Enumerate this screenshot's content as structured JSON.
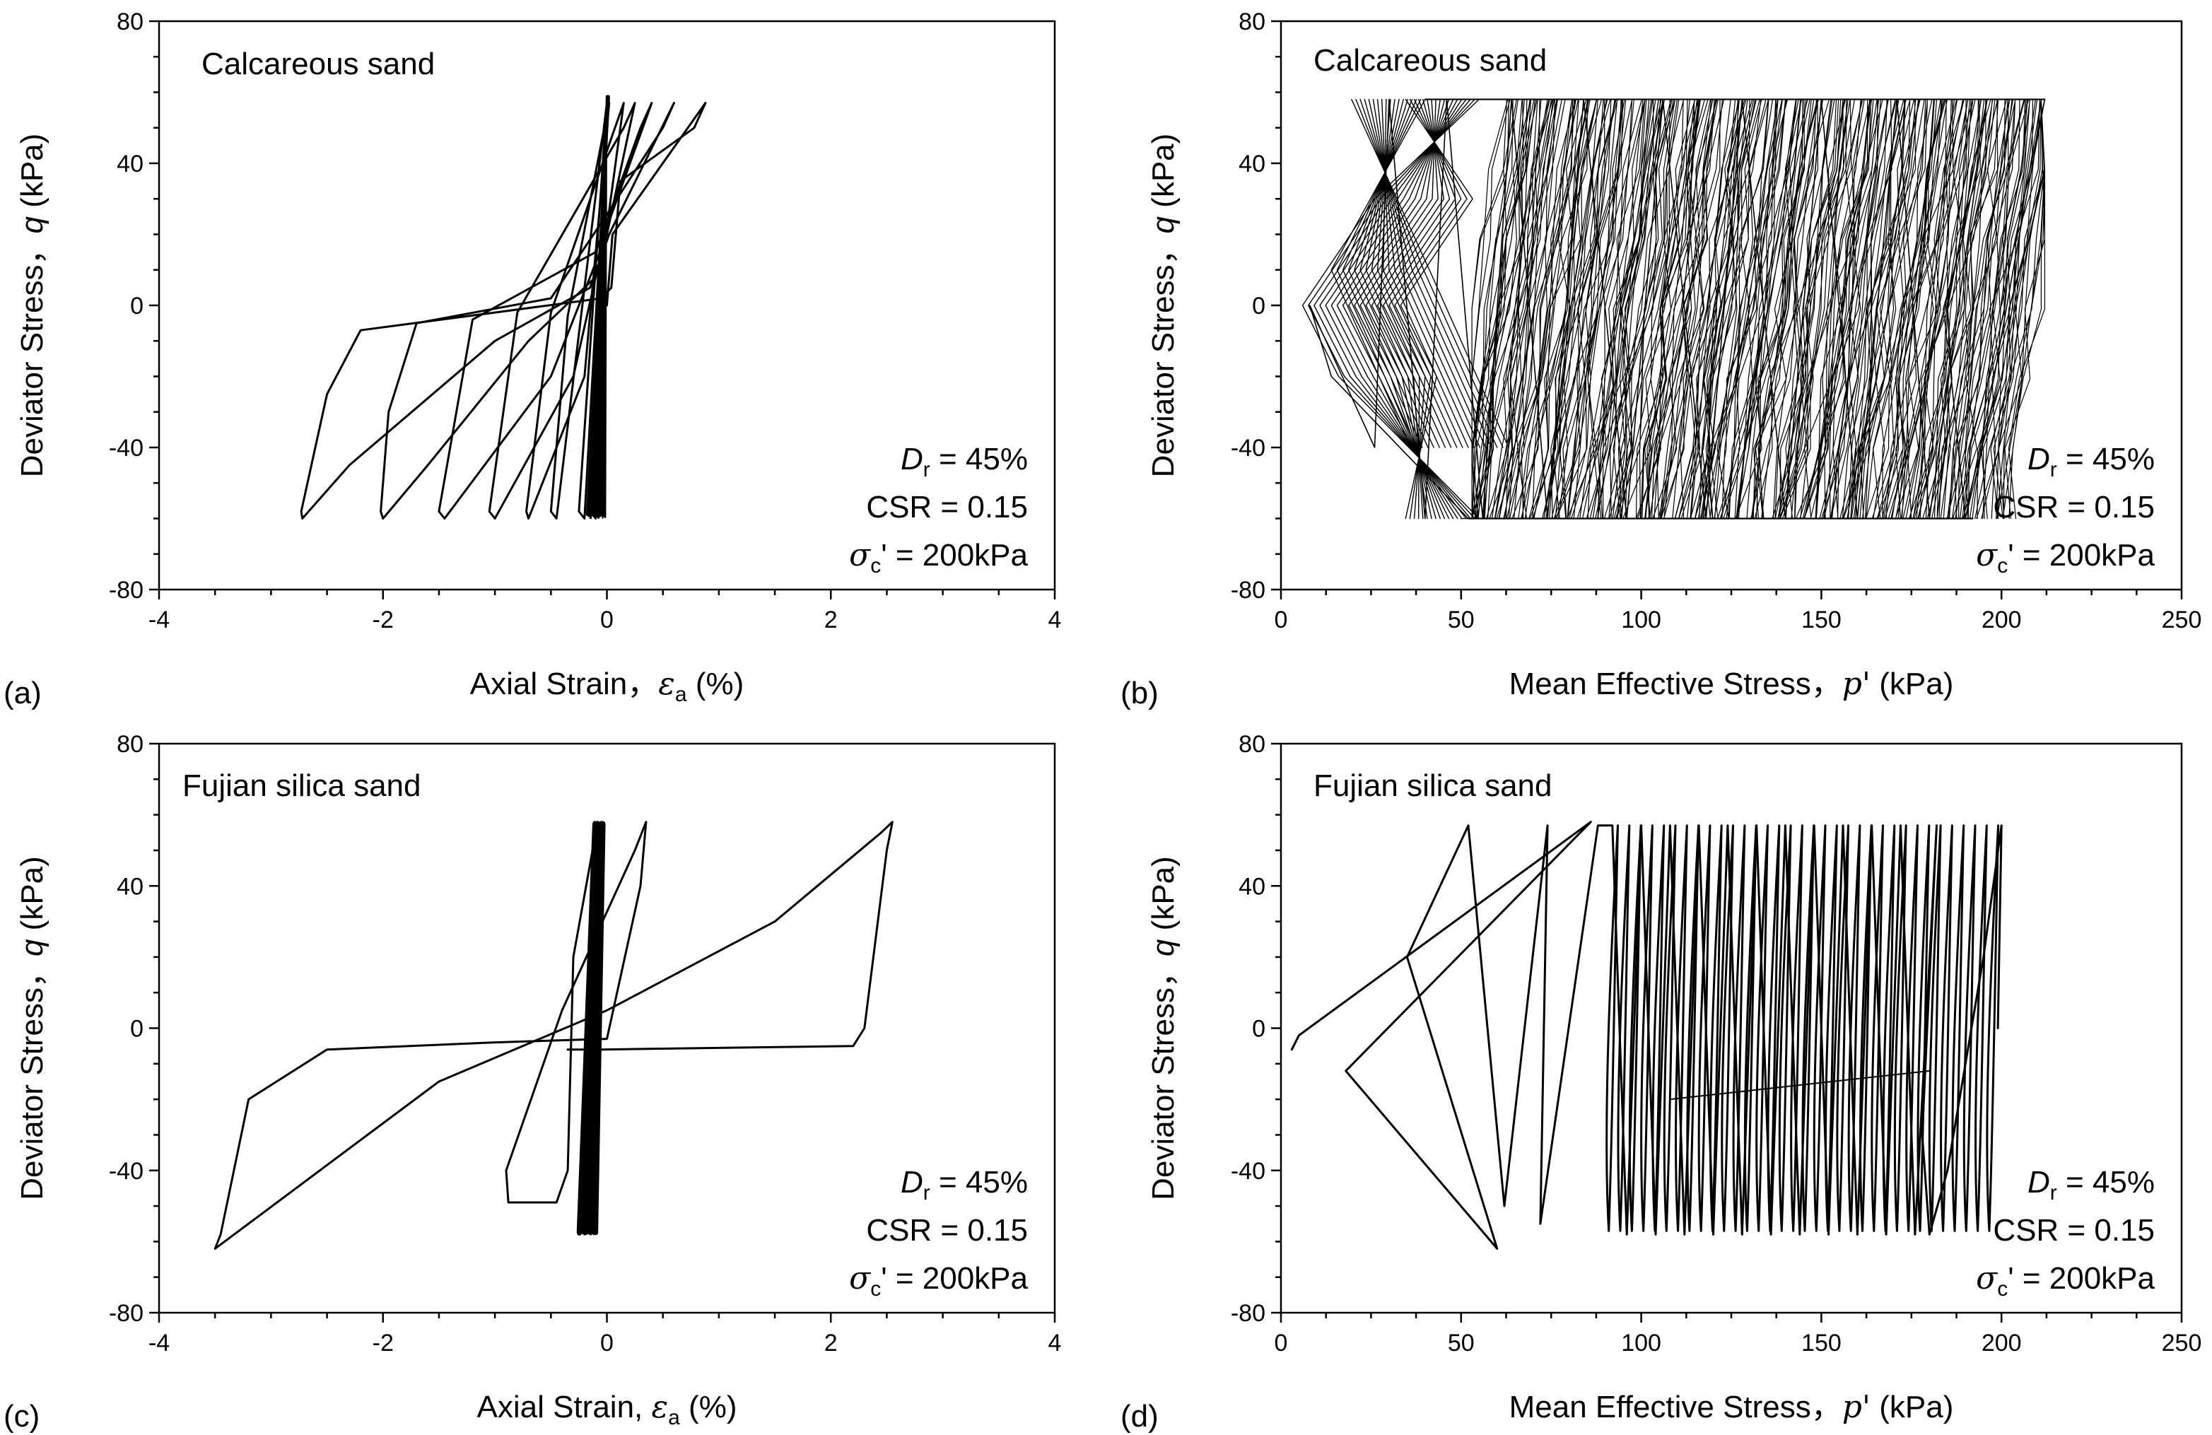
{
  "figure": {
    "panels": [
      {
        "letter": "(a)",
        "title": "Calcareous sand",
        "xlabel": "Axial Strain，",
        "xsym": "ε",
        "xsub": "a",
        "xunit": " (%)",
        "ylabel": "Deviator Stress，",
        "ysym": "q",
        "yunit": " (kPa)",
        "dr_sym": "D",
        "dr_sub": "r",
        "dr_val": " = 45%",
        "csr": "CSR = 0.15",
        "sc_sym": "σ",
        "sc_sub": "c",
        "sc_val": "' = 200kPa"
      },
      {
        "letter": "(b)",
        "title": "Calcareous sand",
        "xlabel": "Mean Effective Stress，",
        "xsym": "p'",
        "xsub": "",
        "xunit": " (kPa)",
        "ylabel": "Deviator Stress，",
        "ysym": "q",
        "yunit": " (kPa)",
        "dr_sym": "D",
        "dr_sub": "r",
        "dr_val": " = 45%",
        "csr": "CSR = 0.15",
        "sc_sym": "σ",
        "sc_sub": "c",
        "sc_val": "' = 200kPa"
      },
      {
        "letter": "(c)",
        "title": "Fujian silica sand",
        "xlabel": "Axial Strain, ",
        "xsym": "ε",
        "xsub": "a",
        "xunit": " (%)",
        "ylabel": "Deviator Stress，",
        "ysym": "q",
        "yunit": " (kPa)",
        "dr_sym": "D",
        "dr_sub": "r",
        "dr_val": " = 45%",
        "csr": "CSR = 0.15",
        "sc_sym": "σ",
        "sc_sub": "c",
        "sc_val": "' = 200kPa"
      },
      {
        "letter": "(d)",
        "title": "Fujian silica sand",
        "xlabel": "Mean Effective Stress，",
        "xsym": "p'",
        "xsub": "",
        "xunit": " (kPa)",
        "ylabel": "Deviator Stress，",
        "ysym": "q",
        "yunit": " (kPa)",
        "dr_sym": "D",
        "dr_sub": "r",
        "dr_val": " = 45%",
        "csr": "CSR = 0.15",
        "sc_sym": "σ",
        "sc_sub": "c",
        "sc_val": "' = 200kPa"
      }
    ]
  },
  "chart_data": [
    {
      "type": "line",
      "title": "Calcareous sand",
      "xlabel": "Axial Strain，εa (%)",
      "ylabel": "Deviator Stress，q (kPa)",
      "xlim": [
        -4,
        4
      ],
      "ylim": [
        -80,
        80
      ],
      "xticks": [
        -4,
        -2,
        0,
        2,
        4
      ],
      "yticks": [
        -80,
        -40,
        0,
        40,
        80
      ],
      "grid": false,
      "series": [
        {
          "points": [
            [
              0.0,
              0
            ],
            [
              0.05,
              20
            ],
            [
              0.88,
              57
            ],
            [
              0.78,
              50
            ],
            [
              0.12,
              35
            ],
            [
              0.04,
              5
            ],
            [
              -0.05,
              2
            ],
            [
              -1.0,
              -2
            ],
            [
              -2.2,
              -7
            ],
            [
              -2.5,
              -25
            ],
            [
              -2.73,
              -58
            ],
            [
              -2.72,
              -60
            ],
            [
              -2.3,
              -45
            ],
            [
              -1.0,
              -10
            ],
            [
              -0.15,
              5
            ],
            [
              0.02,
              20
            ],
            [
              0.6,
              57
            ],
            [
              0.5,
              50
            ],
            [
              0.05,
              28
            ],
            [
              -0.5,
              2
            ],
            [
              -1.7,
              -5
            ],
            [
              -1.95,
              -30
            ],
            [
              -2.02,
              -58
            ],
            [
              -2.0,
              -60
            ],
            [
              -1.6,
              -45
            ],
            [
              -0.7,
              -10
            ],
            [
              -0.1,
              8
            ],
            [
              0.0,
              22
            ],
            [
              0.4,
              57
            ],
            [
              0.3,
              50
            ],
            [
              -0.1,
              15
            ],
            [
              -1.2,
              -4
            ],
            [
              -1.5,
              -58
            ],
            [
              -1.45,
              -60
            ],
            [
              -0.5,
              -20
            ],
            [
              0.0,
              20
            ],
            [
              0.25,
              57
            ],
            [
              0.15,
              50
            ],
            [
              -0.8,
              -2
            ],
            [
              -1.05,
              -58
            ],
            [
              -1.0,
              -60
            ],
            [
              -0.3,
              -20
            ],
            [
              0.0,
              22
            ],
            [
              0.15,
              57
            ],
            [
              0.05,
              48
            ],
            [
              -0.5,
              -2
            ],
            [
              -0.72,
              -58
            ],
            [
              -0.7,
              -60
            ],
            [
              -0.2,
              -20
            ],
            [
              0.02,
              57
            ],
            [
              -0.35,
              -3
            ],
            [
              -0.5,
              -58
            ],
            [
              -0.45,
              -60
            ],
            [
              0.0,
              57
            ],
            [
              -0.25,
              -58
            ],
            [
              -0.2,
              -60
            ],
            [
              0.01,
              58
            ],
            [
              -0.15,
              -58
            ],
            [
              -0.1,
              -60
            ],
            [
              0.0,
              58
            ]
          ],
          "note": "hysteresis loops growing toward negative strain"
        }
      ]
    },
    {
      "type": "line",
      "title": "Calcareous sand",
      "xlabel": "Mean Effective Stress，p' (kPa)",
      "ylabel": "Deviator Stress，q (kPa)",
      "xlim": [
        0,
        250
      ],
      "ylim": [
        -80,
        80
      ],
      "xticks": [
        0,
        50,
        100,
        150,
        200,
        250
      ],
      "yticks": [
        -80,
        -40,
        0,
        40,
        80
      ],
      "grid": false,
      "series": [
        {
          "points": [
            [
              200,
              0
            ],
            [
              212,
              58
            ],
            [
              205,
              20
            ],
            [
              198,
              -20
            ],
            [
              190,
              -60
            ],
            [
              186,
              -20
            ],
            [
              185,
              0
            ],
            [
              196,
              58
            ],
            [
              180,
              -60
            ],
            [
              171,
              58
            ],
            [
              160,
              -60
            ],
            [
              150,
              58
            ],
            [
              140,
              -60
            ],
            [
              128,
              58
            ],
            [
              118,
              -60
            ],
            [
              106,
              58
            ],
            [
              96,
              -60
            ],
            [
              84,
              58
            ],
            [
              74,
              -60
            ],
            [
              64,
              58
            ],
            [
              56,
              -60
            ],
            [
              46,
              58
            ],
            [
              40,
              -60
            ],
            [
              30,
              58
            ],
            [
              26,
              -40
            ],
            [
              8,
              0
            ],
            [
              14,
              -20
            ],
            [
              52,
              -60
            ],
            [
              50,
              -60
            ]
          ],
          "note": "dense stress path band between about 55 and 210 kPa with butterfly loops near 5–55 kPa"
        }
      ]
    },
    {
      "type": "line",
      "title": "Fujian silica sand",
      "xlabel": "Axial Strain, εa (%)",
      "ylabel": "Deviator Stress，q (kPa)",
      "xlim": [
        -4,
        4
      ],
      "ylim": [
        -80,
        80
      ],
      "xticks": [
        -4,
        -2,
        0,
        2,
        4
      ],
      "yticks": [
        -80,
        -40,
        0,
        40,
        80
      ],
      "grid": false,
      "series": [
        {
          "points": [
            [
              -0.35,
              -6
            ],
            [
              -0.05,
              -6
            ],
            [
              2.2,
              -5
            ],
            [
              2.3,
              0
            ],
            [
              2.5,
              50
            ],
            [
              2.55,
              58
            ],
            [
              2.45,
              55
            ],
            [
              1.5,
              30
            ],
            [
              0.0,
              5
            ],
            [
              -1.5,
              -15
            ],
            [
              -3.5,
              -62
            ],
            [
              -3.45,
              -58
            ],
            [
              -3.2,
              -20
            ],
            [
              -2.5,
              -6
            ],
            [
              -1.0,
              -4
            ],
            [
              0.0,
              -3
            ],
            [
              0.3,
              40
            ],
            [
              0.35,
              58
            ],
            [
              0.25,
              50
            ],
            [
              -0.4,
              5
            ],
            [
              -0.9,
              -40
            ],
            [
              -0.88,
              -49
            ],
            [
              -0.45,
              -49
            ],
            [
              -0.35,
              -40
            ],
            [
              -0.3,
              20
            ],
            [
              -0.1,
              55
            ],
            [
              -0.08,
              58
            ],
            [
              -0.25,
              -56
            ],
            [
              -0.2,
              -58
            ],
            [
              -0.05,
              58
            ]
          ],
          "note": "one large loop then narrow loops concentrated near zero strain"
        }
      ]
    },
    {
      "type": "line",
      "title": "Fujian silica sand",
      "xlabel": "Mean Effective Stress，p' (kPa)",
      "ylabel": "Deviator Stress，q (kPa)",
      "xlim": [
        0,
        250
      ],
      "ylim": [
        -80,
        80
      ],
      "xticks": [
        0,
        50,
        100,
        150,
        200,
        250
      ],
      "yticks": [
        -80,
        -40,
        0,
        40,
        80
      ],
      "grid": false,
      "series": [
        {
          "points": [
            [
              199,
              0
            ],
            [
              200,
              57
            ],
            [
              195,
              20
            ],
            [
              185,
              -40
            ],
            [
              180,
              -58
            ],
            [
              178,
              -30
            ],
            [
              182,
              57
            ],
            [
              176,
              -58
            ],
            [
              172,
              57
            ],
            [
              168,
              -58
            ],
            [
              164,
              57
            ],
            [
              160,
              -58
            ],
            [
              156,
              57
            ],
            [
              152,
              -58
            ],
            [
              148,
              57
            ],
            [
              144,
              -58
            ],
            [
              140,
              57
            ],
            [
              136,
              -58
            ],
            [
              132,
              57
            ],
            [
              128,
              -58
            ],
            [
              124,
              57
            ],
            [
              120,
              -58
            ],
            [
              116,
              57
            ],
            [
              112,
              -58
            ],
            [
              108,
              57
            ],
            [
              104,
              -58
            ],
            [
              100,
              57
            ],
            [
              96,
              -58
            ],
            [
              92,
              57
            ],
            [
              88,
              57
            ],
            [
              72,
              -55
            ],
            [
              74,
              57
            ],
            [
              62,
              -50
            ],
            [
              52,
              57
            ],
            [
              35,
              20
            ],
            [
              60,
              -62
            ],
            [
              18,
              -12
            ],
            [
              86,
              58
            ],
            [
              5,
              -2
            ],
            [
              3,
              -6
            ]
          ],
          "note": "butterfly loops at low p' then many nearly vertical cycles between 90 and 200 kPa"
        }
      ]
    }
  ]
}
